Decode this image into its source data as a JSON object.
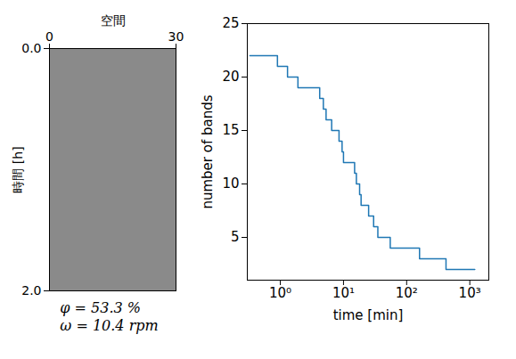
{
  "chart_data": [
    {
      "type": "image",
      "xlabel": "空間",
      "xlim": [
        0,
        30
      ],
      "xticks": [
        0,
        30
      ],
      "ylabel": "時間 [h]",
      "ylim": [
        0,
        2
      ],
      "yticks": [
        0,
        2
      ],
      "annotations": [
        "φ = 53.3 %",
        "ω = 10.4 rpm"
      ]
    },
    {
      "type": "line",
      "xlabel": "time [min]",
      "ylabel": "number of bands",
      "log": "x",
      "grid": false,
      "line_style": "step",
      "color": "#1f77b4",
      "x": [
        0.33,
        0.5,
        0.9,
        1.3,
        1.9,
        4.2,
        4.8,
        5.3,
        6.5,
        8.5,
        9.5,
        10,
        15,
        16,
        18,
        19,
        25,
        30,
        35,
        55,
        160,
        420,
        1200
      ],
      "values": [
        22,
        22,
        21,
        20,
        19,
        18,
        17,
        16,
        15,
        14,
        13,
        12,
        11,
        10,
        9,
        8,
        7,
        6,
        5,
        4,
        3,
        2,
        2
      ],
      "xlim": [
        0.3,
        2000
      ],
      "xticks": [
        {
          "value": 1,
          "label": "10⁰"
        },
        {
          "value": 10,
          "label": "10¹"
        },
        {
          "value": 100,
          "label": "10²"
        },
        {
          "value": 1000,
          "label": "10³"
        }
      ],
      "ylim": [
        1,
        25
      ],
      "yticks": [
        5,
        10,
        15,
        20,
        25
      ]
    }
  ]
}
